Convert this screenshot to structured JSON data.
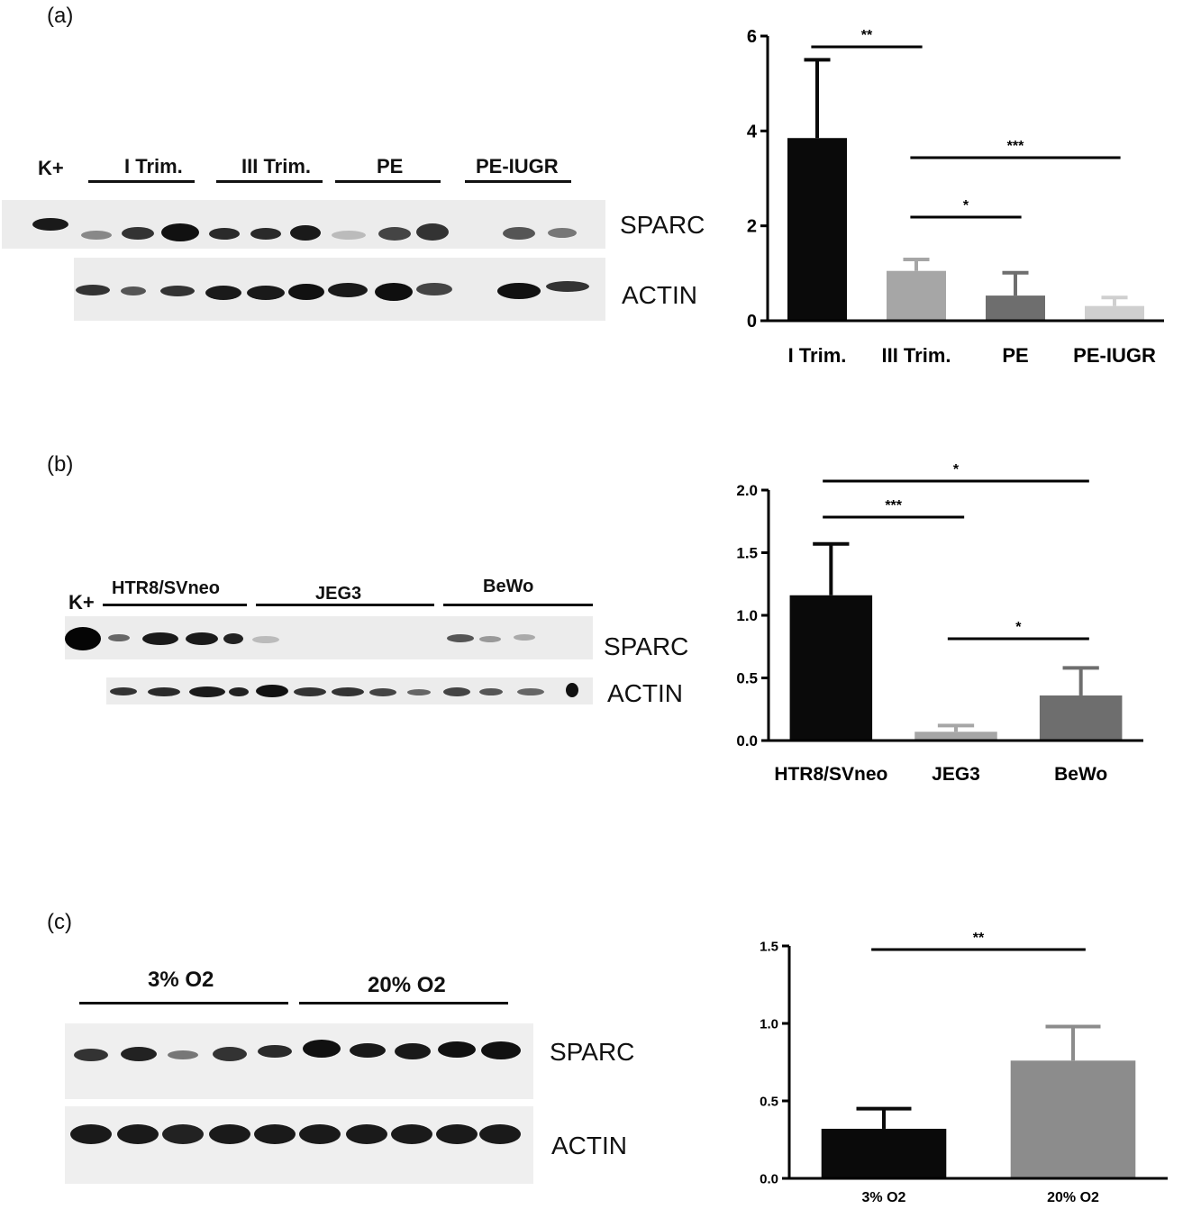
{
  "panels": {
    "a": {
      "label": "(a)",
      "blot": {
        "k_label": "K+",
        "groups": [
          "I Trim.",
          "III Trim.",
          "PE",
          "PE-IUGR"
        ],
        "rows": [
          "SPARC",
          "ACTIN"
        ]
      }
    },
    "b": {
      "label": "(b)",
      "blot": {
        "k_label": "K+",
        "groups": [
          "HTR8/SVneo",
          "JEG3",
          "BeWo"
        ],
        "rows": [
          "SPARC",
          "ACTIN"
        ]
      }
    },
    "c": {
      "label": "(c)",
      "blot": {
        "groups": [
          "3% O2",
          "20% O2"
        ],
        "rows": [
          "SPARC",
          "ACTIN"
        ]
      }
    }
  },
  "chart_data": [
    {
      "type": "bar",
      "categories": [
        "I Trim.",
        "III Trim.",
        "PE",
        "PE-IUGR"
      ],
      "values": [
        3.85,
        1.05,
        0.53,
        0.31
      ],
      "errors": [
        1.65,
        0.24,
        0.48,
        0.18
      ],
      "colors": [
        "#0a0a0a",
        "#a6a6a6",
        "#6e6e6e",
        "#cfcfcf"
      ],
      "ylim": [
        0,
        6
      ],
      "yticks": [
        "0",
        "2",
        "4",
        "6"
      ],
      "significance": [
        {
          "from": 0,
          "to": 1,
          "label": "**"
        },
        {
          "from": 1,
          "to": 3,
          "label": "***"
        },
        {
          "from": 1,
          "to": 2,
          "label": "*"
        }
      ]
    },
    {
      "type": "bar",
      "categories": [
        "HTR8/SVneo",
        "JEG3",
        "BeWo"
      ],
      "values": [
        1.16,
        0.07,
        0.36
      ],
      "errors": [
        0.41,
        0.05,
        0.22
      ],
      "colors": [
        "#0a0a0a",
        "#a6a6a6",
        "#6e6e6e"
      ],
      "ylim": [
        0,
        2.0
      ],
      "yticks": [
        "0.0",
        "0.5",
        "1.0",
        "1.5",
        "2.0"
      ],
      "significance": [
        {
          "from": 0,
          "to": 2,
          "label": "*"
        },
        {
          "from": 0,
          "to": 1,
          "label": "***"
        },
        {
          "from": 1,
          "to": 2,
          "label": "*"
        }
      ]
    },
    {
      "type": "bar",
      "categories": [
        "3% O2",
        "20% O2"
      ],
      "values": [
        0.32,
        0.76
      ],
      "errors": [
        0.13,
        0.22
      ],
      "colors": [
        "#0a0a0a",
        "#8c8c8c"
      ],
      "ylim": [
        0,
        1.5
      ],
      "yticks": [
        "0.0",
        "0.5",
        "1.0",
        "1.5"
      ],
      "significance": [
        {
          "from": 0,
          "to": 1,
          "label": "**"
        }
      ]
    }
  ]
}
